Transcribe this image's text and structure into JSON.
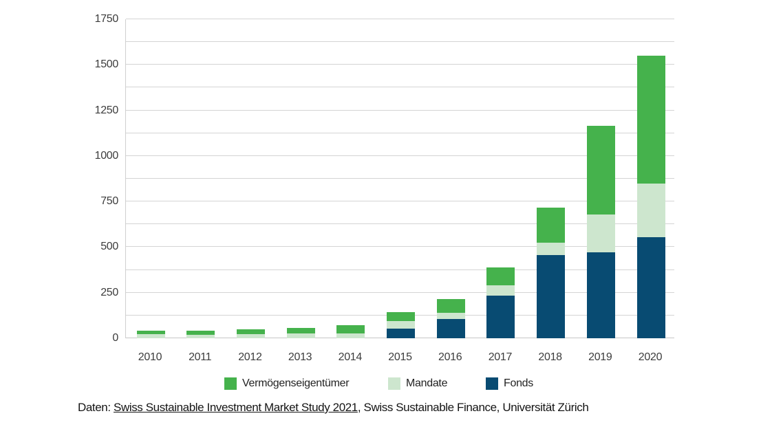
{
  "chart_data": {
    "type": "bar",
    "stacked": true,
    "title": "",
    "xlabel": "",
    "ylabel": "",
    "categories": [
      "2010",
      "2011",
      "2012",
      "2013",
      "2014",
      "2015",
      "2016",
      "2017",
      "2018",
      "2019",
      "2020"
    ],
    "series": [
      {
        "name": "Fonds",
        "color": "#084B72",
        "values": [
          0,
          0,
          0,
          0,
          0,
          51,
          104,
          234,
          455,
          471,
          555
        ]
      },
      {
        "name": "Mandate",
        "color": "#CDE6CE",
        "values": [
          22,
          19,
          22,
          25,
          26,
          44,
          37,
          55,
          70,
          209,
          295
        ]
      },
      {
        "name": "Vermögenseigentümer",
        "color": "#45B24C",
        "values": [
          20,
          23,
          26,
          32,
          45,
          47,
          75,
          101,
          190,
          484,
          700
        ]
      }
    ],
    "totals": [
      42,
      42,
      48,
      57,
      71,
      142,
      216,
      390,
      715,
      1164,
      1550
    ],
    "ylim": [
      0,
      1750
    ],
    "ytick_major": 250,
    "ytick_minor": 125,
    "ytick_labels": [
      "0",
      "250",
      "500",
      "750",
      "1000",
      "1250",
      "1500",
      "1750"
    ],
    "grid": true,
    "legend_position": "bottom"
  },
  "legend": {
    "items": [
      {
        "label": "Vermögenseigentümer",
        "color": "#45B24C"
      },
      {
        "label": "Mandate",
        "color": "#CDE6CE"
      },
      {
        "label": "Fonds",
        "color": "#084B72"
      }
    ]
  },
  "caption": {
    "prefix": "Daten: ",
    "link_text": "Swiss Sustainable Investment Market Study 2021",
    "suffix": ", Swiss Sustainable Finance, Universität Zürich"
  },
  "colors": {
    "green": "#45B24C",
    "light_green": "#CDE6CE",
    "navy": "#084B72",
    "gridline": "#D4D4D4",
    "axis_text": "#3C3C3C"
  }
}
